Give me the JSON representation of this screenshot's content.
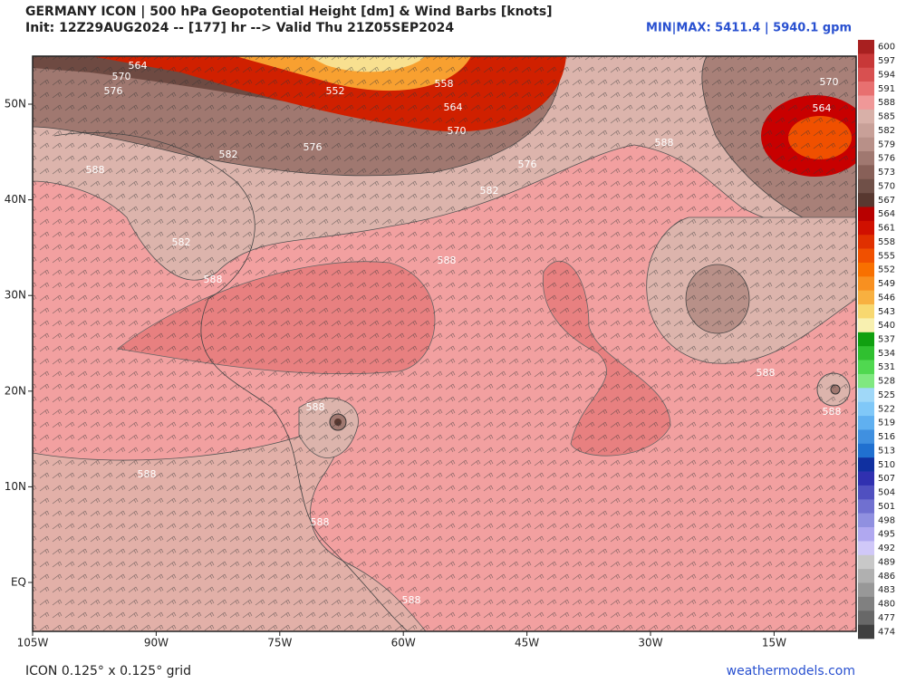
{
  "header": {
    "title": "GERMANY ICON | 500 hPa Geopotential Height [dm] & Wind Barbs [knots]",
    "init": "Init: 12Z29AUG2024 -- [177] hr --> Valid Thu 21Z05SEP2024",
    "minmax": "MIN|MAX: 5411.4 | 5940.1 gpm"
  },
  "map": {
    "lon_labels": [
      "105W",
      "90W",
      "75W",
      "60W",
      "45W",
      "30W",
      "15W"
    ],
    "lat_labels": [
      "50N",
      "40N",
      "30N",
      "20N",
      "10N",
      "EQ"
    ],
    "contour_labels": [
      "564",
      "570",
      "576",
      "552",
      "558",
      "564",
      "570",
      "576",
      "582",
      "588",
      "576",
      "582",
      "588",
      "570",
      "564",
      "588",
      "582",
      "588",
      "588",
      "588",
      "588",
      "588",
      "588",
      "588"
    ]
  },
  "colorbar": {
    "levels": [
      600,
      597,
      594,
      591,
      588,
      585,
      582,
      579,
      576,
      573,
      570,
      567,
      564,
      561,
      558,
      555,
      552,
      549,
      546,
      543,
      540,
      537,
      534,
      531,
      528,
      525,
      522,
      519,
      516,
      513,
      510,
      507,
      504,
      501,
      498,
      495,
      492,
      489,
      486,
      483,
      480,
      477,
      474
    ],
    "colors": [
      "#a82020",
      "#c83838",
      "#d85050",
      "#e87070",
      "#f09898",
      "#d8b0a8",
      "#c8a098",
      "#b89088",
      "#a07870",
      "#886058",
      "#705048",
      "#583830",
      "#b80000",
      "#d01000",
      "#e03000",
      "#f05000",
      "#f87000",
      "#f89020",
      "#f8b040",
      "#f8d870",
      "#f8f0b0",
      "#10a010",
      "#30c030",
      "#50d850",
      "#80e880",
      "#a0d8f8",
      "#80c8f8",
      "#60b0f0",
      "#4090e0",
      "#2070d0",
      "#1030a0",
      "#3030b0",
      "#5050c0",
      "#7070d0",
      "#9090e0",
      "#b0a8f0",
      "#d0c8f8",
      "#c8c8c8",
      "#b0b0b0",
      "#989898",
      "#808080",
      "#686868",
      "#404040"
    ]
  },
  "footer": {
    "grid": "ICON 0.125° x 0.125° grid",
    "site": "weathermodels.com"
  }
}
